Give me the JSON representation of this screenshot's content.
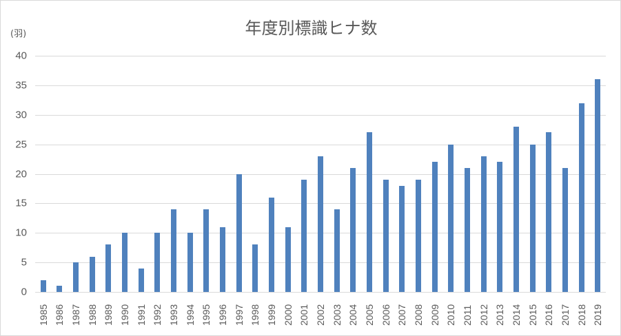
{
  "chart": {
    "title": "年度別標識ヒナ数",
    "unit_label": "(羽)",
    "bar_color": "#4f81bd",
    "y_ticks": [
      "0",
      "5",
      "10",
      "15",
      "20",
      "25",
      "30",
      "35",
      "40"
    ]
  },
  "chart_data": {
    "type": "bar",
    "title": "年度別標識ヒナ数",
    "xlabel": "",
    "ylabel": "(羽)",
    "ylim": [
      0,
      40
    ],
    "grid": true,
    "legend": "none",
    "categories": [
      "1985",
      "1986",
      "1987",
      "1988",
      "1989",
      "1990",
      "1991",
      "1992",
      "1993",
      "1994",
      "1995",
      "1996",
      "1997",
      "1998",
      "1999",
      "2000",
      "2001",
      "2002",
      "2003",
      "2004",
      "2005",
      "2006",
      "2007",
      "2008",
      "2009",
      "2010",
      "2011",
      "2012",
      "2013",
      "2014",
      "2015",
      "2016",
      "2017",
      "2018",
      "2019"
    ],
    "values": [
      2,
      1,
      5,
      6,
      8,
      10,
      4,
      10,
      14,
      10,
      14,
      11,
      20,
      8,
      16,
      11,
      19,
      23,
      14,
      21,
      27,
      19,
      18,
      19,
      22,
      25,
      21,
      23,
      22,
      28,
      25,
      27,
      21,
      32,
      36
    ]
  }
}
